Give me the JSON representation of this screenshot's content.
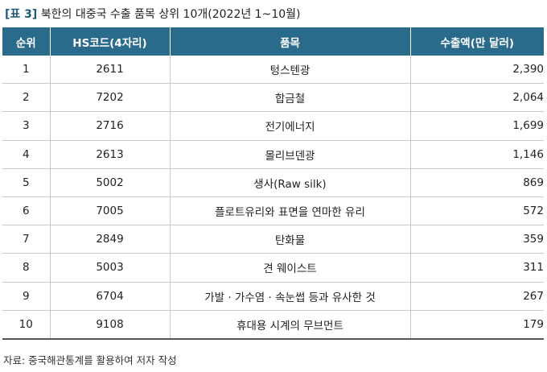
{
  "title": {
    "tag": "[표 3]",
    "text": "북한의 대중국 수출 품목 상위 10개(2022년 1~10월)"
  },
  "table": {
    "headers": [
      "순위",
      "HS코드(4자리)",
      "품목",
      "수출액(만 달러)"
    ],
    "rows": [
      {
        "rank": "1",
        "hs": "2611",
        "item": "텅스텐광",
        "value": "2,390"
      },
      {
        "rank": "2",
        "hs": "7202",
        "item": "합금철",
        "value": "2,064"
      },
      {
        "rank": "3",
        "hs": "2716",
        "item": "전기에너지",
        "value": "1,699"
      },
      {
        "rank": "4",
        "hs": "2613",
        "item": "몰리브덴광",
        "value": "1,146"
      },
      {
        "rank": "5",
        "hs": "5002",
        "item": "생사(Raw silk)",
        "value": "869"
      },
      {
        "rank": "6",
        "hs": "7005",
        "item": "플로트유리와 표면을 연마한 유리",
        "value": "572"
      },
      {
        "rank": "7",
        "hs": "2849",
        "item": "탄화물",
        "value": "359"
      },
      {
        "rank": "8",
        "hs": "5003",
        "item": "견 웨이스트",
        "value": "311"
      },
      {
        "rank": "9",
        "hs": "6704",
        "item": "가발 · 가수염 · 속눈썹 등과 유사한 것",
        "value": "267"
      },
      {
        "rank": "10",
        "hs": "9108",
        "item": "휴대용 시계의 무브먼트",
        "value": "179"
      }
    ]
  },
  "source": "자료: 중국해관통계를 활용하여 저자 작성"
}
